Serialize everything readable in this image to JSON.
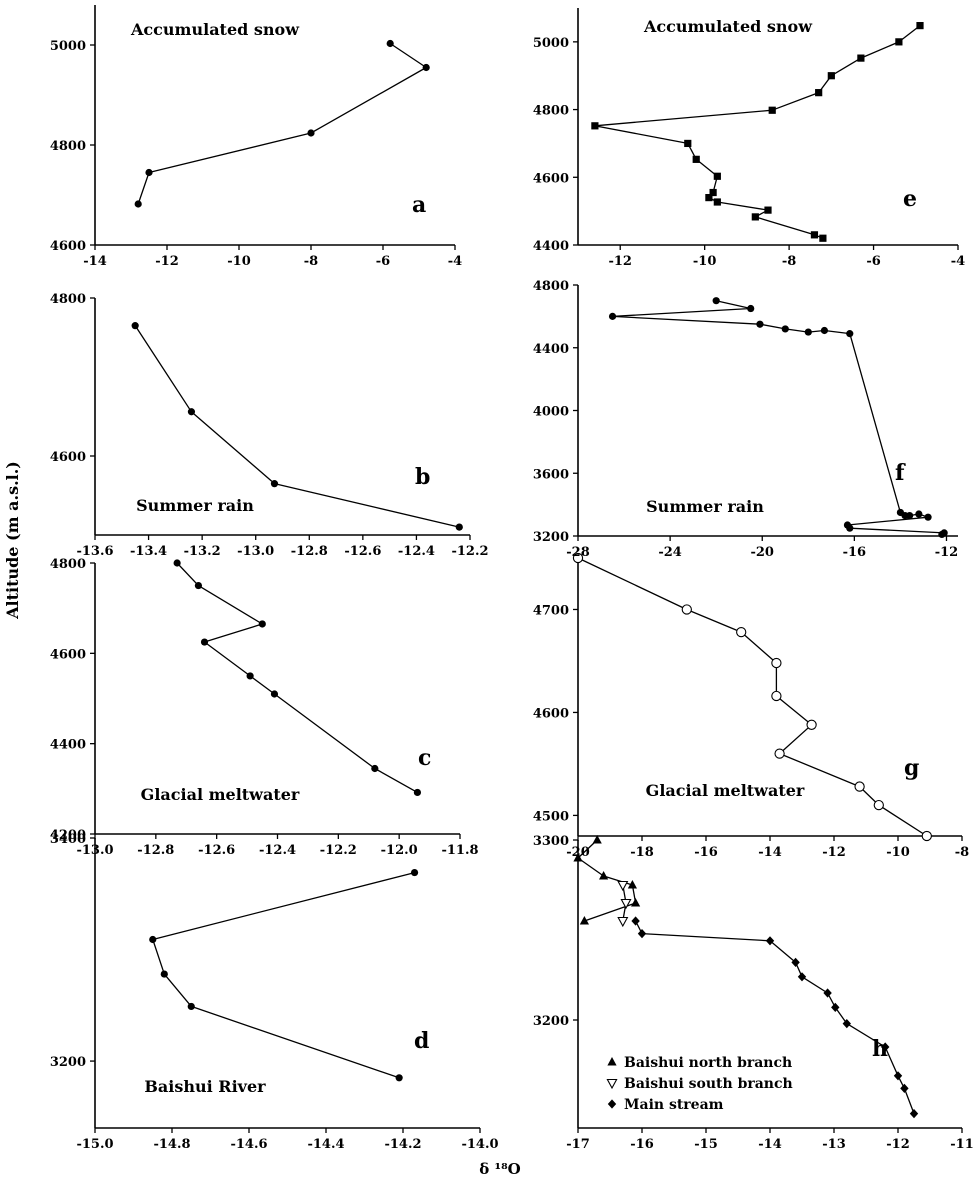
{
  "y_axis_label": "Altitude (m a.s.l.)",
  "x_axis_label": "δ ¹⁸O",
  "chart_data": [
    {
      "id": "a",
      "type": "line",
      "title": "Accumulated snow",
      "letter": "a",
      "marker": "circle",
      "xlim": [
        -14,
        -4
      ],
      "ylim": [
        4600,
        5080
      ],
      "xticks": [
        -14,
        -12,
        -10,
        -8,
        -6,
        -4
      ],
      "yticks": [
        4600,
        4800,
        5000
      ],
      "series": [
        {
          "x": [
            -5.8,
            -4.8,
            -8.0,
            -12.5,
            -12.8
          ],
          "y": [
            5003,
            4955,
            4824,
            4745,
            4682
          ]
        }
      ]
    },
    {
      "id": "e",
      "type": "line",
      "title": "Accumulated snow",
      "letter": "e",
      "marker": "square",
      "xlim": [
        -13,
        -4
      ],
      "ylim": [
        4400,
        5100
      ],
      "xticks": [
        -12,
        -10,
        -8,
        -6,
        -4
      ],
      "yticks": [
        4400,
        4600,
        4800,
        5000
      ],
      "series": [
        {
          "x": [
            -4.9,
            -5.4,
            -6.3,
            -7.0,
            -7.3,
            -8.4,
            -12.6,
            -10.4,
            -10.2,
            -9.7,
            -9.8,
            -9.9,
            -9.7,
            -8.5,
            -8.8,
            -7.4,
            -7.2
          ],
          "y": [
            5048,
            5000,
            4952,
            4900,
            4850,
            4798,
            4752,
            4700,
            4653,
            4603,
            4555,
            4540,
            4527,
            4503,
            4483,
            4430,
            4420
          ]
        }
      ]
    },
    {
      "id": "b",
      "type": "line",
      "title": "Summer rain",
      "letter": "b",
      "marker": "circle",
      "xlim": [
        -13.6,
        -12.2
      ],
      "ylim": [
        4500,
        4800
      ],
      "xticks": [
        -13.6,
        -13.4,
        -13.2,
        -13.0,
        -12.8,
        -12.6,
        -12.4,
        -12.2
      ],
      "yticks": [
        4600,
        4800
      ],
      "series": [
        {
          "x": [
            -13.45,
            -13.24,
            -12.93,
            -12.24
          ],
          "y": [
            4765,
            4656,
            4565,
            4510
          ]
        }
      ]
    },
    {
      "id": "f",
      "type": "line",
      "title": "Summer rain",
      "letter": "f",
      "marker": "circle",
      "xlim": [
        -28,
        -11.5
      ],
      "ylim": [
        3200,
        4800
      ],
      "xticks": [
        -28,
        -24,
        -20,
        -16,
        -12
      ],
      "yticks": [
        3200,
        3600,
        4000,
        4400,
        4800
      ],
      "series": [
        {
          "x": [
            -22.0,
            -20.5,
            -26.5,
            -20.1,
            -19.0,
            -18.0,
            -17.3,
            -16.2,
            -14.0,
            -13.8,
            -13.6,
            -13.2,
            -12.8,
            -16.3,
            -16.2,
            -12.1,
            -12.2
          ],
          "y": [
            4700,
            4650,
            4600,
            4550,
            4520,
            4500,
            4510,
            4490,
            3350,
            3330,
            3330,
            3340,
            3320,
            3270,
            3250,
            3220,
            3210
          ]
        }
      ]
    },
    {
      "id": "c",
      "type": "line",
      "title": "Glacial meltwater",
      "letter": "c",
      "marker": "circle",
      "xlim": [
        -13.0,
        -11.8
      ],
      "ylim": [
        4200,
        4800
      ],
      "xticks": [
        -13.0,
        -12.8,
        -12.6,
        -12.4,
        -12.2,
        -12.0,
        -11.8
      ],
      "yticks": [
        4200,
        4400,
        4600,
        4800
      ],
      "series": [
        {
          "x": [
            -12.73,
            -12.66,
            -12.45,
            -12.64,
            -12.49,
            -12.41,
            -12.08,
            -11.94
          ],
          "y": [
            4800,
            4750,
            4665,
            4625,
            4550,
            4510,
            4345,
            4292
          ]
        }
      ]
    },
    {
      "id": "g",
      "type": "line",
      "title": "Glacial meltwater",
      "letter": "g",
      "marker": "open-circle",
      "xlim": [
        -20,
        -8
      ],
      "ylim": [
        4480,
        4750
      ],
      "xticks": [
        -20,
        -18,
        -16,
        -14,
        -12,
        -10,
        -8
      ],
      "yticks": [
        4500,
        4600,
        4700
      ],
      "series": [
        {
          "x": [
            -20.0,
            -16.6,
            -14.9,
            -13.8,
            -13.8,
            -12.7,
            -13.7,
            -11.2,
            -10.6,
            -9.1
          ],
          "y": [
            4750,
            4700,
            4678,
            4648,
            4616,
            4588,
            4560,
            4528,
            4510,
            4480
          ]
        }
      ]
    },
    {
      "id": "d",
      "type": "line",
      "title": "Baishui River",
      "letter": "d",
      "marker": "circle",
      "xlim": [
        -15.0,
        -14.0
      ],
      "ylim": [
        3140,
        3400
      ],
      "xticks": [
        -15.0,
        -14.8,
        -14.6,
        -14.4,
        -14.2,
        -14.0
      ],
      "yticks": [
        3200,
        3400
      ],
      "series": [
        {
          "x": [
            -14.17,
            -14.85,
            -14.82,
            -14.75,
            -14.21
          ],
          "y": [
            3369,
            3309,
            3278,
            3249,
            3185
          ]
        }
      ]
    },
    {
      "id": "h",
      "type": "line",
      "title": "",
      "letter": "h",
      "xlim": [
        -17,
        -11
      ],
      "ylim": [
        3140,
        3300
      ],
      "xticks": [
        -17,
        -16,
        -15,
        -14,
        -13,
        -12,
        -11
      ],
      "yticks": [
        3200,
        3300
      ],
      "legend_position": "bottom-left",
      "series": [
        {
          "name": "Baishui north branch",
          "marker": "triangle",
          "x": [
            -16.7,
            -17.0,
            -16.6,
            -16.15,
            -16.1,
            -16.9
          ],
          "y": [
            3300,
            3290,
            3280,
            3275,
            3265,
            3255
          ]
        },
        {
          "name": "Baishui south branch",
          "marker": "open-triangle-down",
          "x": [
            -16.3,
            -16.25,
            -16.3
          ],
          "y": [
            3275,
            3265,
            3255
          ]
        },
        {
          "name": "Main stream",
          "marker": "diamond",
          "x": [
            -16.1,
            -16.0,
            -14.0,
            -13.6,
            -13.5,
            -13.1,
            -12.98,
            -12.8,
            -12.2,
            -12.0,
            -11.9,
            -11.75
          ],
          "y": [
            3255,
            3248,
            3244,
            3232,
            3224,
            3215,
            3207,
            3198,
            3185,
            3169,
            3162,
            3148
          ]
        }
      ]
    }
  ]
}
